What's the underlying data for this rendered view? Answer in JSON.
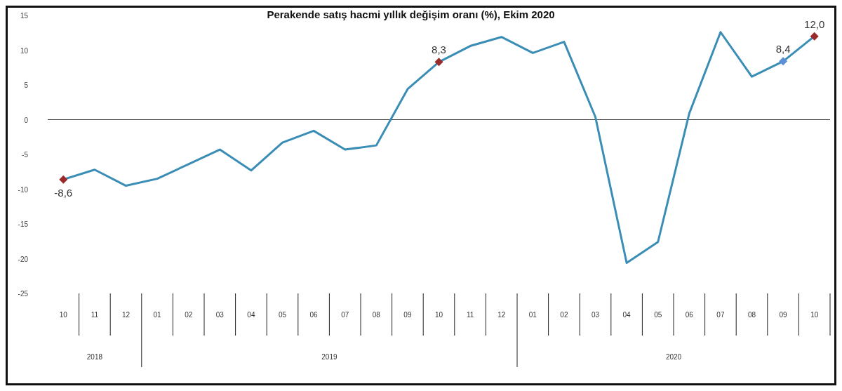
{
  "chart_data": {
    "type": "line",
    "title": "Perakende satış hacmi yıllık değişim oranı (%), Ekim 2020",
    "categories": [
      "10",
      "11",
      "12",
      "01",
      "02",
      "03",
      "04",
      "05",
      "06",
      "07",
      "08",
      "09",
      "10",
      "11",
      "12",
      "01",
      "02",
      "03",
      "04",
      "05",
      "06",
      "07",
      "08",
      "09",
      "10"
    ],
    "series": [
      {
        "color": "#3a8db5",
        "colors": [
          "#9b2a2a",
          null,
          null,
          null,
          null,
          null,
          null,
          null,
          null,
          null,
          null,
          null,
          "#9b2a2a",
          null,
          null,
          null,
          null,
          null,
          null,
          null,
          null,
          null,
          null,
          "#5b8fd6",
          "#9b2a2a"
        ],
        "values": [
          -8.6,
          -7.2,
          -9.5,
          -8.5,
          -6.4,
          -4.3,
          -7.3,
          -3.3,
          -1.6,
          -4.3,
          -3.7,
          4.4,
          8.3,
          10.6,
          11.9,
          9.6,
          11.2,
          0.4,
          -20.6,
          -17.6,
          0.9,
          12.6,
          6.2,
          8.4,
          12.0
        ],
        "value_labels": [
          "-8,6",
          null,
          null,
          null,
          null,
          null,
          null,
          null,
          null,
          null,
          null,
          null,
          "8,3",
          null,
          null,
          null,
          null,
          null,
          null,
          null,
          null,
          null,
          null,
          "8,4",
          "12,0"
        ]
      }
    ],
    "annotations": [
      "2018",
      "2019",
      "2020"
    ],
    "ylim": [
      -25,
      15
    ],
    "yticks": [
      15,
      10,
      5,
      0,
      -5,
      -10,
      -15,
      -20,
      -25
    ],
    "line_style": "solid"
  }
}
